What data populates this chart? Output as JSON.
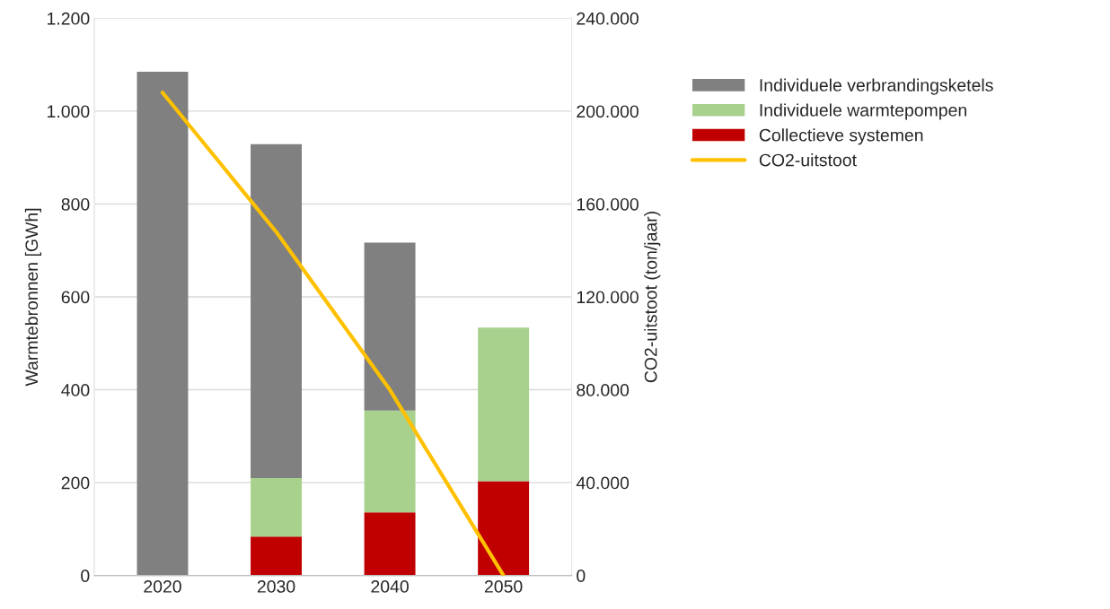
{
  "chart_data": {
    "type": "bar",
    "stacked": true,
    "ylabel": "Warmtebronnen [GWh]",
    "y2label": "CO2-uitstoot (ton/jaar)",
    "categories": [
      "2020",
      "2030",
      "2040",
      "2050"
    ],
    "series": [
      {
        "name": "Collectieve systemen",
        "color": "#c00000",
        "values": [
          null,
          84,
          136,
          203
        ]
      },
      {
        "name": "Individuele warmtepompen",
        "color": "#a9d18e",
        "values": [
          null,
          126,
          219,
          331
        ]
      },
      {
        "name": "Individuele verbrandingsketels",
        "color": "#808080",
        "values": [
          1085,
          719,
          362,
          null
        ]
      },
      {
        "name": "CO2-uitstoot",
        "type": "line",
        "axis": "y2",
        "color": "#ffc000",
        "values": [
          208000,
          148000,
          80000,
          0
        ]
      }
    ],
    "ylim": [
      0,
      1200
    ],
    "yticks": [
      0,
      200,
      400,
      600,
      800,
      {
        "value": 1000,
        "label": "1.000"
      },
      {
        "value": 1200,
        "label": "1.200"
      }
    ],
    "y2lim": [
      0,
      240000
    ],
    "y2ticks": [
      0,
      {
        "value": 40000,
        "label": "40.000"
      },
      {
        "value": 80000,
        "label": "80.000"
      },
      {
        "value": 120000,
        "label": "120.000"
      },
      {
        "value": 160000,
        "label": "160.000"
      },
      {
        "value": 200000,
        "label": "200.000"
      },
      {
        "value": 240000,
        "label": "240.000"
      }
    ],
    "grid": "y",
    "legend": "right",
    "marker": "none",
    "line_style": "solid"
  }
}
